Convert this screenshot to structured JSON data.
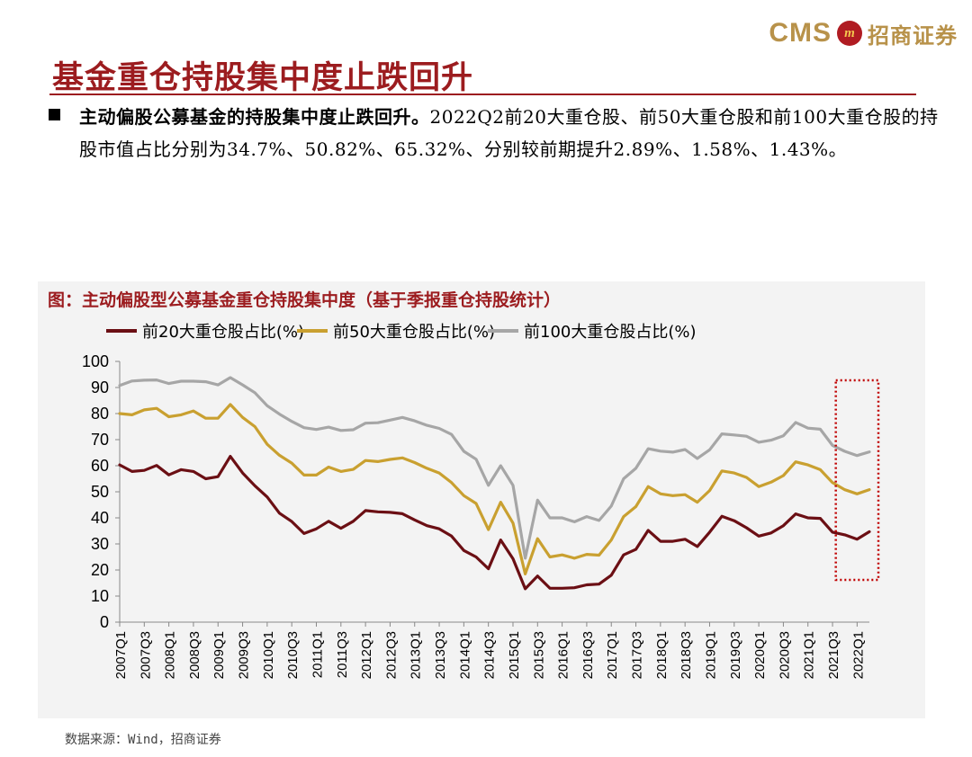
{
  "logo": {
    "text_cms": "CMS",
    "badge": "m",
    "text_cn": "招商证券"
  },
  "title": "基金重仓持股集中度止跌回升",
  "summary": {
    "lead": "主动偏股公募基金的持股集中度止跌回升。",
    "body": "2022Q2前20大重仓股、前50大重仓股和前100大重仓股的持股市值占比分别为34.7%、50.82%、65.32%、分别较前期提升2.89%、1.58%、1.43%。"
  },
  "source": "数据来源：Wind，招商证券",
  "colors": {
    "top20": "#6b0f14",
    "top50": "#c9a030",
    "top100": "#a6a6a6",
    "highlight": "#c00000"
  },
  "chart_data": {
    "type": "line",
    "title": "图：主动偏股型公募基金重仓持股集中度（基于季报重仓持股统计）",
    "xlabel": "",
    "ylabel": "",
    "ylim": [
      0,
      100
    ],
    "yticks": [
      0,
      10,
      20,
      30,
      40,
      50,
      60,
      70,
      80,
      90,
      100
    ],
    "grid": false,
    "legend_position": "top",
    "x_tick_labels": [
      "2007Q1",
      "2007Q3",
      "2008Q1",
      "2008Q3",
      "2009Q1",
      "2009Q3",
      "2010Q1",
      "2010Q3",
      "2011Q1",
      "2011Q3",
      "2012Q1",
      "2012Q3",
      "2013Q1",
      "2013Q3",
      "2014Q1",
      "2014Q3",
      "2015Q1",
      "2015Q3",
      "2016Q1",
      "2016Q3",
      "2017Q1",
      "2017Q3",
      "2018Q1",
      "2018Q3",
      "2019Q1",
      "2019Q3",
      "2020Q1",
      "2020Q3",
      "2021Q1",
      "2021Q3",
      "2022Q1"
    ],
    "x": [
      "2007Q1",
      "2007Q2",
      "2007Q3",
      "2007Q4",
      "2008Q1",
      "2008Q2",
      "2008Q3",
      "2008Q4",
      "2009Q1",
      "2009Q2",
      "2009Q3",
      "2009Q4",
      "2010Q1",
      "2010Q2",
      "2010Q3",
      "2010Q4",
      "2011Q1",
      "2011Q2",
      "2011Q3",
      "2011Q4",
      "2012Q1",
      "2012Q2",
      "2012Q3",
      "2012Q4",
      "2013Q1",
      "2013Q2",
      "2013Q3",
      "2013Q4",
      "2014Q1",
      "2014Q2",
      "2014Q3",
      "2014Q4",
      "2015Q1",
      "2015Q2",
      "2015Q3",
      "2015Q4",
      "2016Q1",
      "2016Q2",
      "2016Q3",
      "2016Q4",
      "2017Q1",
      "2017Q2",
      "2017Q3",
      "2017Q4",
      "2018Q1",
      "2018Q2",
      "2018Q3",
      "2018Q4",
      "2019Q1",
      "2019Q2",
      "2019Q3",
      "2019Q4",
      "2020Q1",
      "2020Q2",
      "2020Q3",
      "2020Q4",
      "2021Q1",
      "2021Q2",
      "2021Q3",
      "2021Q4",
      "2022Q1",
      "2022Q2"
    ],
    "series": [
      {
        "name": "前20大重仓股占比(%)",
        "key": "top20",
        "values": [
          60.3,
          57.8,
          58.2,
          60.1,
          56.5,
          58.5,
          57.8,
          55.0,
          55.8,
          63.6,
          57.2,
          52.3,
          48.0,
          41.8,
          38.6,
          34.0,
          35.8,
          38.7,
          36.0,
          38.7,
          42.8,
          42.3,
          42.1,
          41.6,
          39.2,
          37.0,
          35.8,
          33.0,
          27.5,
          25.0,
          20.5,
          31.5,
          24.3,
          12.8,
          17.7,
          13.0,
          13.0,
          13.2,
          14.3,
          14.6,
          18.0,
          25.8,
          27.9,
          35.2,
          31.0,
          31.0,
          31.8,
          29.0,
          34.5,
          40.6,
          38.9,
          36.2,
          33.0,
          34.2,
          37.0,
          41.5,
          40.0,
          39.8,
          34.5,
          33.5,
          31.8,
          34.7
        ]
      },
      {
        "name": "前50大重仓股占比(%)",
        "key": "top50",
        "values": [
          80.0,
          79.5,
          81.4,
          82.0,
          78.8,
          79.5,
          81.0,
          78.2,
          78.2,
          83.5,
          78.5,
          75.0,
          68.2,
          64.0,
          61.0,
          56.4,
          56.4,
          59.5,
          57.8,
          58.6,
          62.0,
          61.6,
          62.4,
          63.0,
          61.2,
          59.0,
          57.2,
          53.5,
          48.5,
          45.5,
          35.5,
          46.0,
          38.0,
          18.5,
          32.0,
          25.0,
          25.8,
          24.5,
          26.0,
          25.7,
          31.5,
          40.5,
          44.3,
          52.0,
          49.2,
          48.5,
          48.9,
          46.0,
          50.5,
          58.0,
          57.2,
          55.5,
          52.0,
          53.7,
          56.2,
          61.5,
          60.3,
          58.5,
          53.5,
          50.8,
          49.2,
          50.82
        ]
      },
      {
        "name": "前100大重仓股占比(%)",
        "key": "top100",
        "values": [
          90.8,
          92.5,
          92.8,
          92.9,
          91.5,
          92.4,
          92.4,
          92.2,
          91.0,
          93.8,
          91.0,
          88.0,
          83.0,
          79.8,
          77.0,
          74.6,
          73.9,
          74.8,
          73.5,
          73.8,
          76.3,
          76.5,
          77.5,
          78.5,
          77.2,
          75.5,
          74.3,
          72.0,
          65.5,
          62.5,
          52.5,
          60.0,
          52.5,
          24.5,
          46.8,
          40.0,
          40.0,
          38.5,
          40.5,
          39.0,
          44.5,
          55.0,
          59.0,
          66.5,
          65.6,
          65.2,
          66.2,
          62.8,
          66.1,
          72.2,
          71.8,
          71.3,
          69.0,
          69.8,
          71.5,
          76.6,
          74.4,
          74.0,
          67.8,
          65.5,
          63.9,
          65.32
        ]
      }
    ],
    "highlight_region": {
      "from": "2021Q4",
      "to": "2022Q2",
      "style": "dotted box"
    }
  }
}
